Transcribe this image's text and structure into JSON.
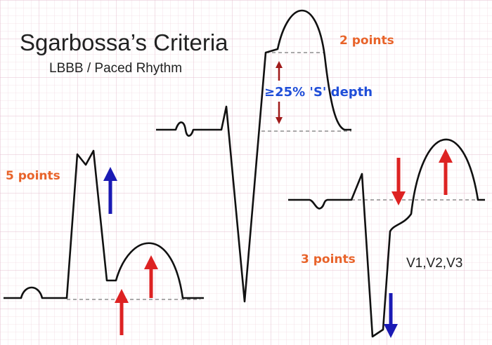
{
  "title": "Sgarbossa’s Criteria",
  "subtitle": "LBBB / Paced Rhythm",
  "labels": {
    "five_points": "5 points",
    "two_points": "2 points",
    "three_points": "3 points",
    "depth": "≥25% 'S' depth",
    "leads": "V1,V2,V3"
  }
}
